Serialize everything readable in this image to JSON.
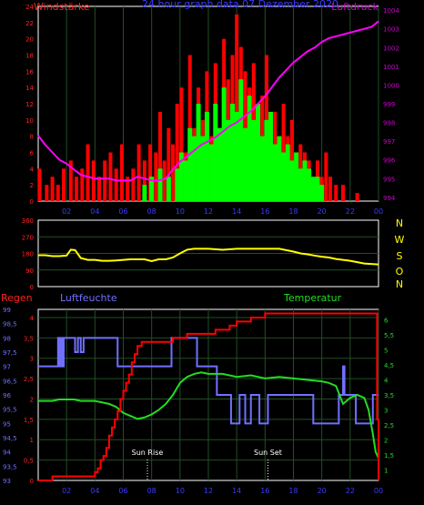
{
  "top_panel": {
    "title_left": "Windstärke",
    "title_center": "24 hour graph data 07 Dezember 2020",
    "title_right": "Luftdruck"
  },
  "middle_panel": {
    "directions": [
      "N",
      "W",
      "S",
      "O",
      "N"
    ]
  },
  "bottom_panel": {
    "title_left": "Regen",
    "title_mid": "Luftfeuchte",
    "title_right": "Temperatur",
    "sunrise_label": "Sun Rise",
    "sunset_label": "Sun Set"
  },
  "colors": {
    "wind_gust": "#ff0000",
    "wind_avg": "#00ff00",
    "pressure": "#ff00ff",
    "direction": "#ffff00",
    "rain": "#ff0000",
    "humidity": "#7070ff",
    "temperature": "#22dd22",
    "axis_left": "#ff2222",
    "axis_right_top": "#cc00cc",
    "axis_right_bottom": "#22dd22",
    "axis_humidity": "#7070ff",
    "grid": "#224f24",
    "frame": "#ffffff",
    "x_ticks": "#3a3aff"
  },
  "chart_data": [
    {
      "type": "bar",
      "name": "wind-and-pressure",
      "title": "24 hour graph data 07 Dezember 2020",
      "x_ticks": [
        "02",
        "04",
        "06",
        "08",
        "10",
        "12",
        "14",
        "16",
        "18",
        "20",
        "22",
        "00"
      ],
      "x_range_hours": [
        0,
        24
      ],
      "ylabel_left": "Windstärke",
      "ylim_left": [
        0,
        24
      ],
      "y_ticks_left": [
        0,
        2,
        4,
        6,
        8,
        10,
        12,
        14,
        16,
        18,
        20,
        22,
        24
      ],
      "ylabel_right": "Luftdruck",
      "ylim_right": [
        993.8,
        1004.2
      ],
      "y_ticks_right": [
        994,
        995,
        996,
        997,
        998,
        999,
        1000,
        1001,
        1002,
        1003,
        1004
      ],
      "series": [
        {
          "name": "gust",
          "type": "bar",
          "x": [
            0.1,
            0.6,
            1.0,
            1.4,
            1.8,
            2.3,
            2.7,
            3.1,
            3.5,
            3.9,
            4.3,
            4.7,
            5.1,
            5.5,
            5.9,
            6.3,
            6.7,
            7.1,
            7.5,
            7.9,
            8.3,
            8.6,
            8.9,
            9.2,
            9.5,
            9.8,
            10.1,
            10.4,
            10.7,
            11.0,
            11.3,
            11.6,
            11.9,
            12.2,
            12.5,
            12.8,
            13.1,
            13.4,
            13.7,
            14.0,
            14.3,
            14.6,
            14.9,
            15.2,
            15.5,
            15.8,
            16.1,
            16.4,
            16.7,
            17.0,
            17.3,
            17.6,
            17.9,
            18.2,
            18.5,
            18.8,
            19.1,
            19.4,
            19.7,
            20.0,
            20.3,
            20.6,
            21.0,
            21.5,
            22.0,
            22.5,
            23.0,
            23.5
          ],
          "values": [
            4,
            2,
            3,
            2,
            4,
            5,
            3,
            4,
            7,
            5,
            3,
            5,
            6,
            4,
            7,
            3,
            4,
            7,
            5,
            7,
            6,
            11,
            5,
            9,
            7,
            12,
            14,
            6,
            18,
            9,
            14,
            10,
            16,
            8,
            17,
            9,
            20,
            15,
            18,
            23,
            19,
            16,
            14,
            17,
            10,
            13,
            18,
            9,
            11,
            7,
            12,
            8,
            10,
            6,
            7,
            6,
            5,
            2,
            5,
            3,
            6,
            3,
            2,
            2,
            0,
            1,
            0,
            0
          ]
        },
        {
          "name": "average",
          "type": "bar",
          "x": [
            7.5,
            8.0,
            8.6,
            9.2,
            9.8,
            10.1,
            10.4,
            10.7,
            11.0,
            11.3,
            11.6,
            11.9,
            12.2,
            12.5,
            12.8,
            13.1,
            13.4,
            13.7,
            14.0,
            14.3,
            14.6,
            14.9,
            15.2,
            15.5,
            15.8,
            16.1,
            16.4,
            16.7,
            17.0,
            17.3,
            17.6,
            17.9,
            18.2,
            18.5,
            18.8,
            19.1,
            19.4,
            19.7,
            20.0
          ],
          "values": [
            2,
            3,
            4,
            3,
            4,
            6,
            5,
            9,
            8,
            12,
            8,
            11,
            7,
            12,
            9,
            14,
            10,
            12,
            11,
            15,
            9,
            13,
            10,
            12,
            8,
            10,
            11,
            7,
            8,
            6,
            7,
            5,
            6,
            4,
            5,
            4,
            3,
            3,
            2
          ]
        },
        {
          "name": "pressure",
          "type": "line",
          "axis": "right",
          "x": [
            0,
            0.5,
            1,
            1.5,
            2,
            2.5,
            3,
            3.5,
            4,
            4.5,
            5,
            5.5,
            6,
            6.5,
            7,
            7.5,
            8,
            8.5,
            9,
            9.5,
            10,
            10.5,
            11,
            11.5,
            12,
            12.5,
            13,
            13.5,
            14,
            14.5,
            15,
            15.5,
            16,
            16.5,
            17,
            17.5,
            18,
            18.5,
            19,
            19.5,
            20,
            20.5,
            21,
            21.5,
            22,
            22.5,
            23,
            23.5,
            24
          ],
          "values": [
            997.3,
            996.8,
            996.4,
            996.0,
            995.8,
            995.5,
            995.2,
            995.1,
            995.0,
            995.0,
            995.0,
            994.9,
            994.9,
            994.9,
            995.1,
            995.0,
            994.9,
            994.9,
            995.0,
            995.5,
            995.9,
            996.2,
            996.5,
            996.8,
            997.0,
            997.2,
            997.5,
            997.8,
            998.0,
            998.3,
            998.6,
            999.0,
            999.4,
            999.9,
            1000.4,
            1000.8,
            1001.2,
            1001.5,
            1001.8,
            1002.0,
            1002.3,
            1002.5,
            1002.6,
            1002.7,
            1002.8,
            1002.9,
            1003.0,
            1003.1,
            1003.4
          ]
        }
      ]
    },
    {
      "type": "line",
      "name": "wind-direction",
      "x_range_hours": [
        0,
        24
      ],
      "ylim": [
        0,
        360
      ],
      "y_ticks": [
        0,
        90,
        180,
        270,
        360
      ],
      "series": [
        {
          "name": "direction",
          "x": [
            0,
            0.5,
            1,
            1.5,
            2,
            2.3,
            2.6,
            3.0,
            3.5,
            4,
            4.5,
            5,
            5.5,
            6,
            6.5,
            7,
            7.5,
            8,
            8.5,
            9,
            9.5,
            10,
            10.5,
            11,
            11.5,
            12,
            13,
            14,
            15,
            16,
            17,
            18,
            18.5,
            19,
            19.5,
            20,
            20.5,
            21,
            22,
            23,
            24
          ],
          "values": [
            170,
            170,
            165,
            165,
            168,
            200,
            198,
            155,
            145,
            145,
            140,
            140,
            142,
            145,
            148,
            148,
            148,
            138,
            148,
            148,
            158,
            180,
            200,
            205,
            205,
            205,
            200,
            205,
            205,
            205,
            205,
            190,
            180,
            175,
            168,
            162,
            158,
            150,
            140,
            125,
            120
          ]
        }
      ]
    },
    {
      "type": "line",
      "name": "rain-humidity-temperature",
      "x_range_hours": [
        0,
        24
      ],
      "ylabel_left": "Regen",
      "ylim_left": [
        0,
        4.2
      ],
      "y_ticks_left": [
        0,
        0.5,
        1,
        1.5,
        2,
        2.5,
        3,
        3.5,
        4
      ],
      "ylabel_humidity": "Luftfeuchte",
      "ylim_humidity": [
        93,
        99
      ],
      "y_ticks_humidity": [
        93,
        93.5,
        94,
        94.5,
        95,
        95.5,
        96,
        96.5,
        97,
        97.5,
        98,
        98.5,
        99
      ],
      "ylabel_right": "Temperatur",
      "ylim_right": [
        0.65,
        6.35
      ],
      "y_ticks_right": [
        1,
        1.5,
        2,
        2.5,
        3,
        3.5,
        4,
        4.5,
        5,
        5.5,
        6
      ],
      "annotations": [
        {
          "label": "Sun Rise",
          "x": 7.7
        },
        {
          "label": "Sun Set",
          "x": 16.2
        }
      ],
      "series": [
        {
          "name": "rain",
          "axis": "left",
          "type": "step",
          "x": [
            0,
            0.5,
            1,
            2,
            3,
            3.5,
            4,
            4.2,
            4.4,
            4.6,
            4.8,
            5.0,
            5.2,
            5.4,
            5.6,
            5.8,
            6.0,
            6.2,
            6.4,
            6.6,
            6.8,
            7.0,
            7.3,
            7.6,
            8.0,
            8.5,
            9.0,
            9.5,
            10,
            10.5,
            11,
            11.5,
            12,
            12.5,
            13,
            13.5,
            14,
            14.5,
            15,
            15.5,
            16,
            17,
            18,
            19,
            20,
            21,
            22,
            23,
            23.8,
            23.9,
            24
          ],
          "values": [
            0,
            0,
            0.1,
            0.1,
            0.1,
            0.1,
            0.2,
            0.3,
            0.5,
            0.6,
            0.8,
            1.1,
            1.3,
            1.5,
            1.7,
            2.0,
            2.2,
            2.4,
            2.6,
            2.9,
            3.1,
            3.3,
            3.4,
            3.4,
            3.4,
            3.4,
            3.4,
            3.5,
            3.5,
            3.6,
            3.6,
            3.6,
            3.6,
            3.7,
            3.7,
            3.8,
            3.9,
            3.9,
            4.0,
            4.0,
            4.1,
            4.1,
            4.1,
            4.1,
            4.1,
            4.1,
            4.1,
            4.1,
            4.1,
            1.5,
            0
          ]
        },
        {
          "name": "humidity",
          "axis": "humidity",
          "type": "step",
          "x": [
            0,
            1.3,
            1.4,
            1.5,
            1.6,
            1.7,
            1.8,
            2.4,
            2.6,
            2.8,
            3.0,
            3.2,
            4.0,
            4.6,
            5.6,
            6.0,
            7.2,
            8.0,
            8.6,
            9.4,
            9.8,
            10.0,
            10.6,
            11.2,
            11.8,
            12.6,
            13.2,
            13.6,
            14.0,
            14.2,
            14.6,
            15.0,
            15.6,
            16.2,
            17.8,
            19.4,
            20.6,
            21.2,
            21.5,
            21.6,
            22.0,
            22.4,
            23.0,
            23.6,
            24
          ],
          "values": [
            97,
            97,
            98,
            97,
            98,
            97,
            98,
            98,
            97.5,
            98,
            97.5,
            98,
            98,
            98,
            97,
            97,
            97,
            97,
            97,
            98,
            98,
            98,
            98,
            97,
            97,
            96,
            96,
            95,
            95,
            96,
            95,
            96,
            95,
            96,
            96,
            95,
            95,
            96,
            97,
            96,
            96,
            95,
            95,
            96,
            96
          ]
        },
        {
          "name": "temperature",
          "axis": "right",
          "type": "line",
          "x": [
            0,
            0.5,
            1,
            1.5,
            2,
            2.5,
            3,
            3.5,
            4,
            4.5,
            5,
            5.5,
            6,
            6.5,
            7,
            7.5,
            8,
            8.5,
            9,
            9.5,
            10,
            10.5,
            11,
            11.5,
            12,
            13,
            14,
            15,
            16,
            17,
            18,
            19,
            20,
            20.5,
            21,
            21.5,
            22,
            22.5,
            23,
            23.3,
            23.6,
            23.8,
            24
          ],
          "values": [
            3.3,
            3.3,
            3.3,
            3.35,
            3.35,
            3.35,
            3.3,
            3.3,
            3.3,
            3.25,
            3.2,
            3.1,
            2.9,
            2.8,
            2.7,
            2.75,
            2.85,
            3.0,
            3.2,
            3.5,
            3.9,
            4.1,
            4.2,
            4.25,
            4.2,
            4.2,
            4.1,
            4.15,
            4.05,
            4.1,
            4.05,
            4.0,
            3.95,
            3.9,
            3.8,
            3.2,
            3.4,
            3.5,
            3.4,
            3.0,
            2.2,
            1.6,
            1.4
          ]
        }
      ]
    }
  ]
}
